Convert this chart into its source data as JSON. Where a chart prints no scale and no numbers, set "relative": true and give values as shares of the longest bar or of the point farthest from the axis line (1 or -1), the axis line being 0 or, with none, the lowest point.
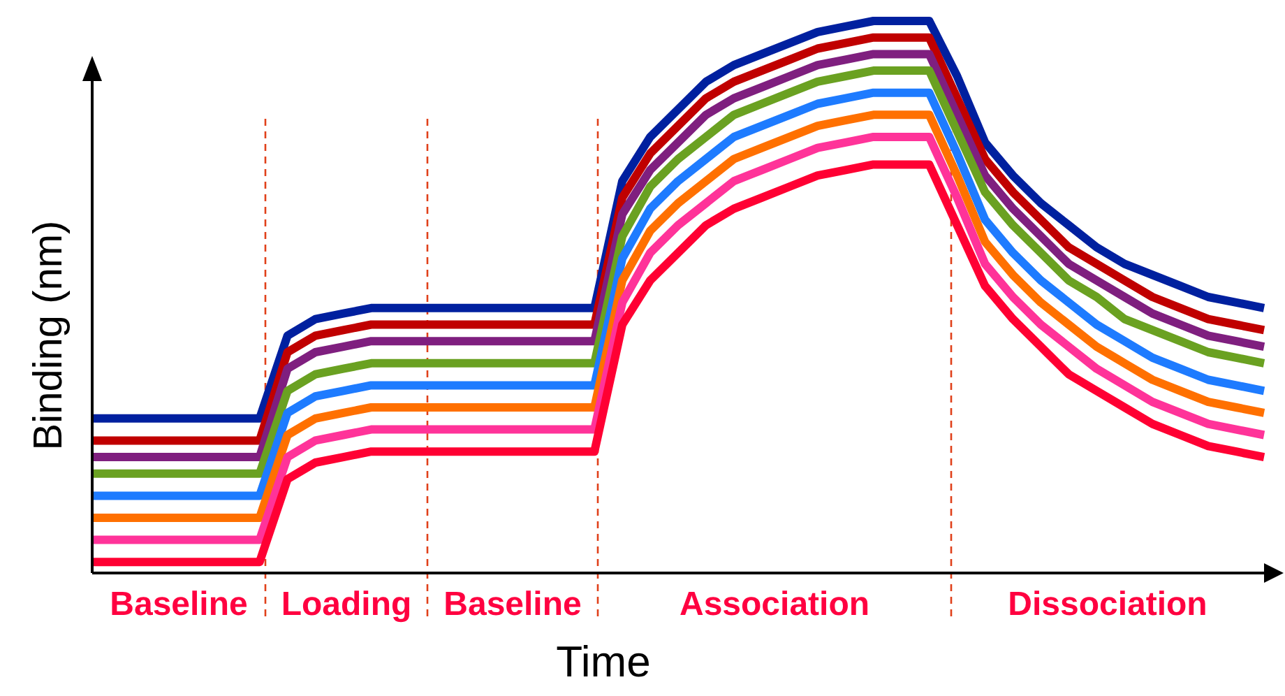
{
  "chart_data": {
    "type": "line",
    "relative": true,
    "xlabel": "Time",
    "ylabel": "Binding (nm)",
    "categories": [
      null,
      null,
      null,
      null,
      null,
      null,
      null,
      null,
      null,
      null,
      null,
      null,
      null,
      null,
      null,
      null,
      null,
      null,
      null,
      null,
      null,
      null,
      null,
      null,
      null,
      null,
      null,
      null,
      null,
      null,
      null,
      null,
      null,
      null,
      null,
      null,
      null,
      null,
      null,
      null,
      null,
      null,
      null
    ],
    "series": [
      {
        "color": "#00209f",
        "values": [
          0.28,
          0.28,
          0.28,
          0.28,
          0.28,
          0.28,
          0.28,
          0.43,
          0.46,
          0.47,
          0.48,
          0.48,
          0.48,
          0.48,
          0.48,
          0.48,
          0.48,
          0.48,
          0.48,
          0.71,
          0.79,
          0.84,
          0.89,
          0.92,
          0.94,
          0.96,
          0.98,
          0.99,
          1.0,
          1.0,
          1.0,
          0.9,
          0.78,
          0.72,
          0.67,
          0.63,
          0.59,
          0.56,
          0.54,
          0.52,
          0.5,
          0.49,
          0.48
        ]
      },
      {
        "color": "#c00000",
        "values": [
          0.24,
          0.24,
          0.24,
          0.24,
          0.24,
          0.24,
          0.24,
          0.4,
          0.43,
          0.44,
          0.45,
          0.45,
          0.45,
          0.45,
          0.45,
          0.45,
          0.45,
          0.45,
          0.45,
          0.68,
          0.76,
          0.81,
          0.86,
          0.89,
          0.91,
          0.93,
          0.95,
          0.96,
          0.97,
          0.97,
          0.97,
          0.86,
          0.75,
          0.69,
          0.64,
          0.59,
          0.56,
          0.53,
          0.5,
          0.48,
          0.46,
          0.45,
          0.44
        ]
      },
      {
        "color": "#7f1f7f",
        "values": [
          0.21,
          0.21,
          0.21,
          0.21,
          0.21,
          0.21,
          0.21,
          0.37,
          0.4,
          0.41,
          0.42,
          0.42,
          0.42,
          0.42,
          0.42,
          0.42,
          0.42,
          0.42,
          0.42,
          0.65,
          0.73,
          0.78,
          0.83,
          0.86,
          0.88,
          0.9,
          0.92,
          0.93,
          0.94,
          0.94,
          0.94,
          0.83,
          0.72,
          0.66,
          0.61,
          0.56,
          0.53,
          0.5,
          0.47,
          0.45,
          0.43,
          0.42,
          0.41
        ]
      },
      {
        "color": "#6aa121",
        "values": [
          0.18,
          0.18,
          0.18,
          0.18,
          0.18,
          0.18,
          0.18,
          0.33,
          0.36,
          0.37,
          0.38,
          0.38,
          0.38,
          0.38,
          0.38,
          0.38,
          0.38,
          0.38,
          0.38,
          0.61,
          0.7,
          0.75,
          0.79,
          0.83,
          0.85,
          0.87,
          0.89,
          0.9,
          0.91,
          0.91,
          0.91,
          0.8,
          0.69,
          0.63,
          0.58,
          0.53,
          0.5,
          0.46,
          0.44,
          0.42,
          0.4,
          0.39,
          0.38
        ]
      },
      {
        "color": "#1e7bff",
        "values": [
          0.14,
          0.14,
          0.14,
          0.14,
          0.14,
          0.14,
          0.14,
          0.29,
          0.32,
          0.33,
          0.34,
          0.34,
          0.34,
          0.34,
          0.34,
          0.34,
          0.34,
          0.34,
          0.34,
          0.57,
          0.66,
          0.71,
          0.75,
          0.79,
          0.81,
          0.83,
          0.85,
          0.86,
          0.87,
          0.87,
          0.87,
          0.76,
          0.64,
          0.58,
          0.53,
          0.49,
          0.45,
          0.42,
          0.39,
          0.37,
          0.35,
          0.34,
          0.33
        ]
      },
      {
        "color": "#ff7000",
        "values": [
          0.1,
          0.1,
          0.1,
          0.1,
          0.1,
          0.1,
          0.1,
          0.25,
          0.28,
          0.29,
          0.3,
          0.3,
          0.3,
          0.3,
          0.3,
          0.3,
          0.3,
          0.3,
          0.3,
          0.53,
          0.62,
          0.67,
          0.71,
          0.75,
          0.77,
          0.79,
          0.81,
          0.82,
          0.83,
          0.83,
          0.83,
          0.72,
          0.6,
          0.54,
          0.49,
          0.45,
          0.41,
          0.38,
          0.35,
          0.33,
          0.31,
          0.3,
          0.29
        ]
      },
      {
        "color": "#ff3399",
        "values": [
          0.06,
          0.06,
          0.06,
          0.06,
          0.06,
          0.06,
          0.06,
          0.21,
          0.24,
          0.25,
          0.26,
          0.26,
          0.26,
          0.26,
          0.26,
          0.26,
          0.26,
          0.26,
          0.26,
          0.49,
          0.58,
          0.63,
          0.67,
          0.71,
          0.73,
          0.75,
          0.77,
          0.78,
          0.79,
          0.79,
          0.79,
          0.68,
          0.56,
          0.5,
          0.45,
          0.41,
          0.37,
          0.34,
          0.31,
          0.29,
          0.27,
          0.26,
          0.25
        ]
      },
      {
        "color": "#ff0033",
        "values": [
          0.02,
          0.02,
          0.02,
          0.02,
          0.02,
          0.02,
          0.02,
          0.17,
          0.2,
          0.21,
          0.22,
          0.22,
          0.22,
          0.22,
          0.22,
          0.22,
          0.22,
          0.22,
          0.22,
          0.45,
          0.53,
          0.58,
          0.63,
          0.66,
          0.68,
          0.7,
          0.72,
          0.73,
          0.74,
          0.74,
          0.74,
          0.63,
          0.52,
          0.46,
          0.41,
          0.36,
          0.33,
          0.3,
          0.27,
          0.25,
          0.23,
          0.22,
          0.21
        ]
      }
    ],
    "annotations": [
      "Baseline",
      "Loading",
      "Baseline",
      "Association",
      "Dissociation"
    ]
  }
}
